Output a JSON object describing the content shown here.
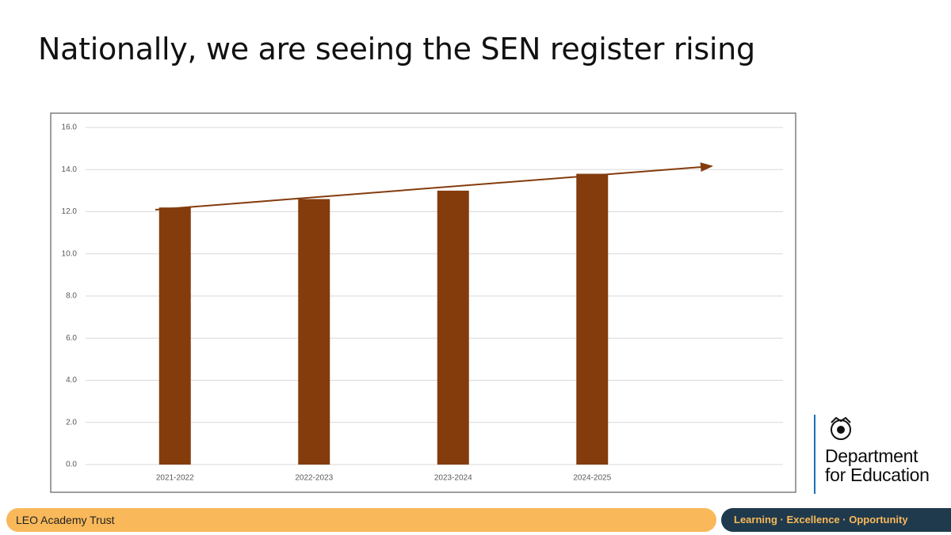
{
  "chart_data": {
    "type": "bar",
    "title": "Nationally, we are seeing the SEN register rising",
    "categories": [
      "2021-2022",
      "2022-2023",
      "2023-2024",
      "2024-2025",
      null
    ],
    "values": [
      12.2,
      12.6,
      13.0,
      13.8,
      null
    ],
    "color": "#843c0c",
    "ylim": [
      0,
      16
    ],
    "yticks": [
      {
        "value": 0,
        "label": "0.0"
      },
      {
        "value": 2,
        "label": "2.0"
      },
      {
        "value": 4,
        "label": "4.0"
      },
      {
        "value": 6,
        "label": "6.0"
      },
      {
        "value": 8,
        "label": "8.0"
      },
      {
        "value": 10,
        "label": "10.0"
      },
      {
        "value": 12,
        "label": "12.0"
      },
      {
        "value": 14,
        "label": "14.0"
      },
      {
        "value": 16,
        "label": "16.0"
      }
    ],
    "grid": true
  },
  "logo": [
    "Department",
    "for Education"
  ],
  "footer": {
    "left": "LEO Academy Trust",
    "right": "Learning · Excellence · Opportunity"
  }
}
